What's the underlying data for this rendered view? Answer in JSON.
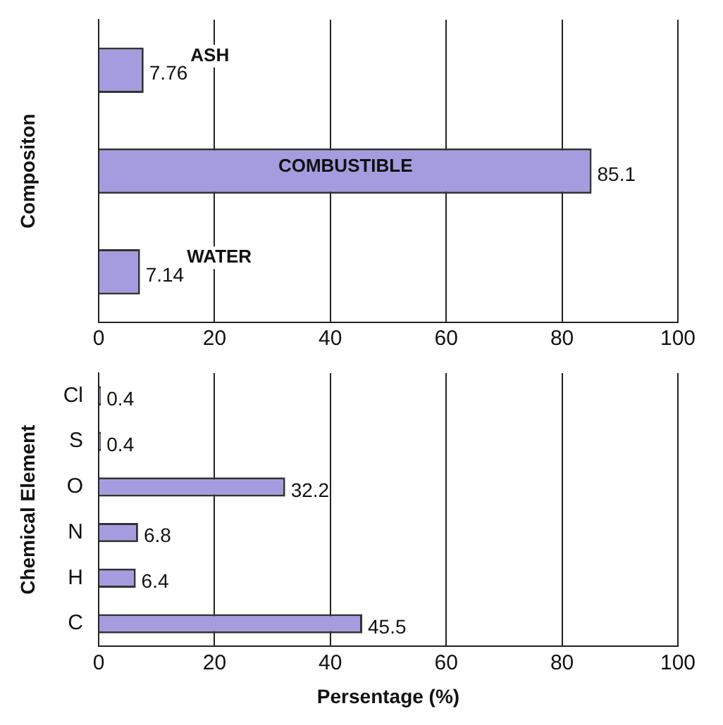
{
  "chart_data": [
    {
      "type": "bar",
      "orientation": "horizontal",
      "ylabel": "Compositon",
      "categories": [
        "ASH",
        "COMBUSTIBLE",
        "WATER"
      ],
      "values": [
        7.76,
        85.1,
        7.14
      ],
      "color": "#a59ce0",
      "xlim": [
        0,
        100
      ],
      "xticks": [
        0,
        20,
        40,
        60,
        80,
        100
      ],
      "grid": "x",
      "data_labels": true,
      "tick_labels": "x"
    },
    {
      "type": "bar",
      "orientation": "horizontal",
      "ylabel": "Chemical Element",
      "xlabel": "Persentage (%)",
      "categories": [
        "Cl",
        "S",
        "O",
        "N",
        "H",
        "C"
      ],
      "values": [
        0.4,
        0.4,
        32.2,
        6.8,
        6.4,
        45.5
      ],
      "color": "#a59ce0",
      "xlim": [
        0,
        100
      ],
      "xticks": [
        0,
        20,
        40,
        60,
        80,
        100
      ],
      "grid": "x",
      "data_labels": true
    }
  ]
}
